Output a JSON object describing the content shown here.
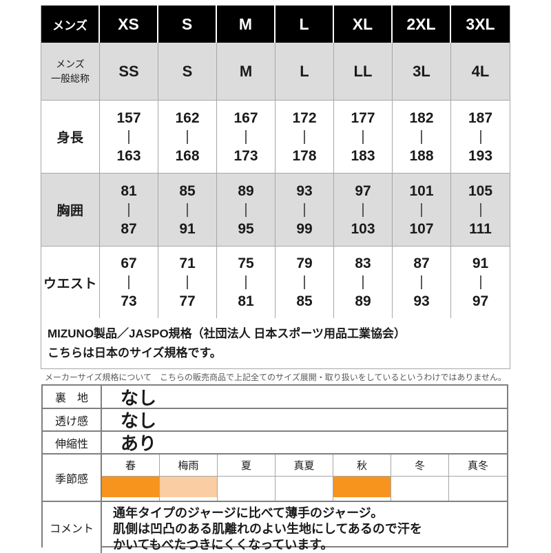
{
  "colors": {
    "header_bg": "#000000",
    "header_text": "#ffffff",
    "alt_row_bg": "#dcdcdc",
    "grid_line": "#a6a6a6",
    "spec_border": "#7f7f7f",
    "season_full": "#f7941e",
    "season_partial": "#facda2",
    "disclaimer_text": "#595959"
  },
  "size_table": {
    "header": {
      "label": "メンズ",
      "sizes": [
        "XS",
        "S",
        "M",
        "L",
        "XL",
        "2XL",
        "3XL"
      ]
    },
    "general": {
      "label_line1": "メンズ",
      "label_line2": "一般総称",
      "values": [
        "SS",
        "S",
        "M",
        "L",
        "LL",
        "3L",
        "4L"
      ]
    },
    "rows": [
      {
        "label": "身長",
        "ranges": [
          [
            "157",
            "163"
          ],
          [
            "162",
            "168"
          ],
          [
            "167",
            "173"
          ],
          [
            "172",
            "178"
          ],
          [
            "177",
            "183"
          ],
          [
            "182",
            "188"
          ],
          [
            "187",
            "193"
          ]
        ]
      },
      {
        "label": "胸囲",
        "ranges": [
          [
            "81",
            "87"
          ],
          [
            "85",
            "91"
          ],
          [
            "89",
            "95"
          ],
          [
            "93",
            "99"
          ],
          [
            "97",
            "103"
          ],
          [
            "101",
            "107"
          ],
          [
            "105",
            "111"
          ]
        ]
      },
      {
        "label": "ウエスト",
        "ranges": [
          [
            "67",
            "73"
          ],
          [
            "71",
            "77"
          ],
          [
            "75",
            "81"
          ],
          [
            "79",
            "85"
          ],
          [
            "83",
            "89"
          ],
          [
            "87",
            "93"
          ],
          [
            "91",
            "97"
          ]
        ]
      }
    ]
  },
  "notes": {
    "line1": "MIZUNO製品／JASPO規格（社団法人 日本スポーツ用品工業協会）",
    "line2": "こちらは日本のサイズ規格です。",
    "disclaimer": "メーカーサイズ規格について　こちらの販売商品で上記全てのサイズ展開・取り扱いをしているというわけではありません。"
  },
  "spec_table": {
    "rows": [
      {
        "label": "裏　地",
        "value": "なし"
      },
      {
        "label": "透け感",
        "value": "なし"
      },
      {
        "label": "伸縮性",
        "value": "あり"
      }
    ],
    "season": {
      "label": "季節感",
      "columns": [
        "春",
        "梅雨",
        "夏",
        "真夏",
        "秋",
        "冬",
        "真冬"
      ],
      "levels": [
        "full",
        "partial",
        "none",
        "none",
        "full",
        "none",
        "none"
      ]
    },
    "comment": {
      "label": "コメント",
      "lines": [
        "通年タイプのジャージに比べて薄手のジャージ。",
        "肌側は凹凸のある肌離れのよい生地にしてあるので汗を",
        "かいてもべたつきにくくなっています。"
      ]
    }
  }
}
